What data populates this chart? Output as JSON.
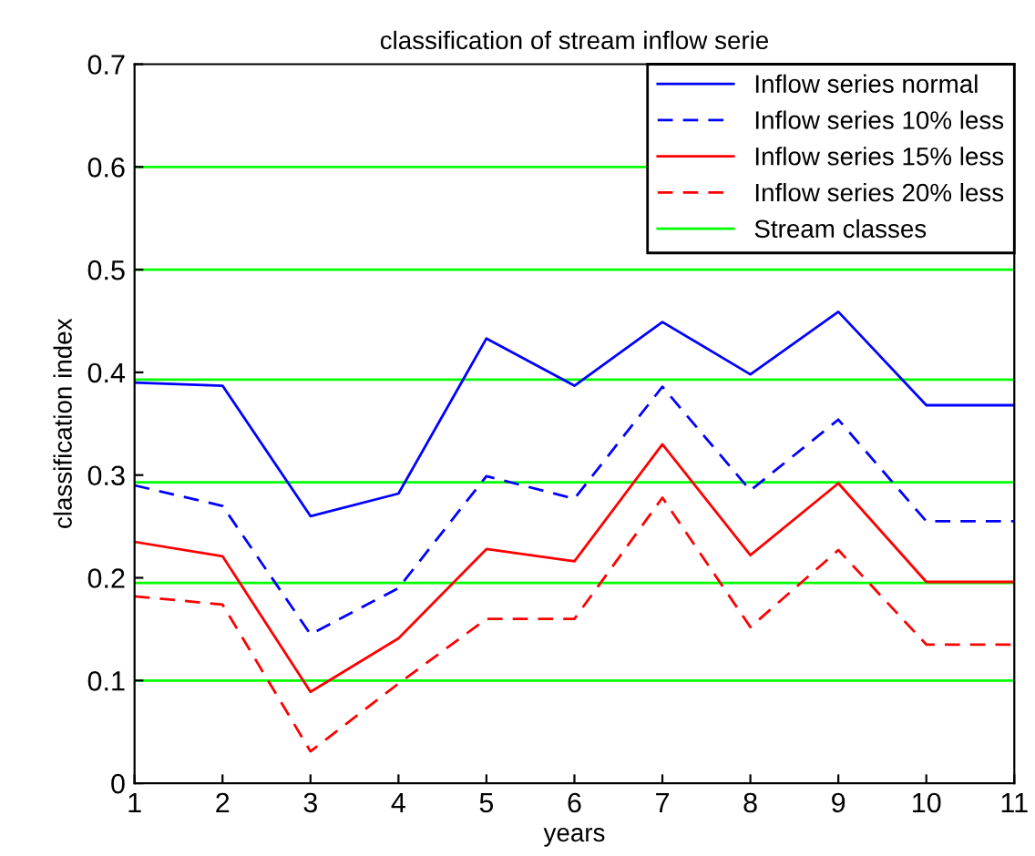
{
  "chart_data": {
    "type": "line",
    "title": "classification of stream inflow serie",
    "xlabel": "years",
    "ylabel": "classification index",
    "x": [
      1,
      2,
      3,
      4,
      5,
      6,
      7,
      8,
      9,
      10,
      11
    ],
    "series": [
      {
        "name": "Inflow series normal",
        "color": "#0000ff",
        "line_style": "solid",
        "values": [
          0.39,
          0.387,
          0.26,
          0.282,
          0.433,
          0.387,
          0.449,
          0.398,
          0.459,
          0.368,
          0.368
        ]
      },
      {
        "name": "Inflow series 10% less",
        "color": "#0000ff",
        "line_style": "dashed",
        "values": [
          0.29,
          0.27,
          0.145,
          0.19,
          0.299,
          0.277,
          0.386,
          0.285,
          0.354,
          0.255,
          0.255
        ]
      },
      {
        "name": "Inflow series 15% less",
        "color": "#ff0000",
        "line_style": "solid",
        "values": [
          0.235,
          0.221,
          0.089,
          0.141,
          0.228,
          0.216,
          0.33,
          0.222,
          0.292,
          0.196,
          0.196
        ]
      },
      {
        "name": "Inflow series 20% less",
        "color": "#ff0000",
        "line_style": "dashed",
        "values": [
          0.182,
          0.174,
          0.031,
          0.097,
          0.16,
          0.16,
          0.278,
          0.152,
          0.227,
          0.135,
          0.135
        ]
      }
    ],
    "ref_lines": [
      {
        "axis": "y",
        "value": 0.1,
        "label": "Stream classes",
        "color": "#00ff00"
      },
      {
        "axis": "y",
        "value": 0.195,
        "color": "#00ff00"
      },
      {
        "axis": "y",
        "value": 0.293,
        "color": "#00ff00"
      },
      {
        "axis": "y",
        "value": 0.393,
        "color": "#00ff00"
      },
      {
        "axis": "y",
        "value": 0.5,
        "color": "#00ff00"
      },
      {
        "axis": "y",
        "value": 0.6,
        "color": "#00ff00"
      }
    ],
    "xlim": [
      1,
      11
    ],
    "xticks": [
      1,
      2,
      3,
      4,
      5,
      6,
      7,
      8,
      9,
      10,
      11
    ],
    "ylim": [
      0,
      0.7
    ],
    "yticks": [
      0,
      0.1,
      0.2,
      0.3,
      0.4,
      0.5,
      0.6,
      0.7
    ],
    "grid": false,
    "legend": "top right",
    "marker": "none"
  }
}
